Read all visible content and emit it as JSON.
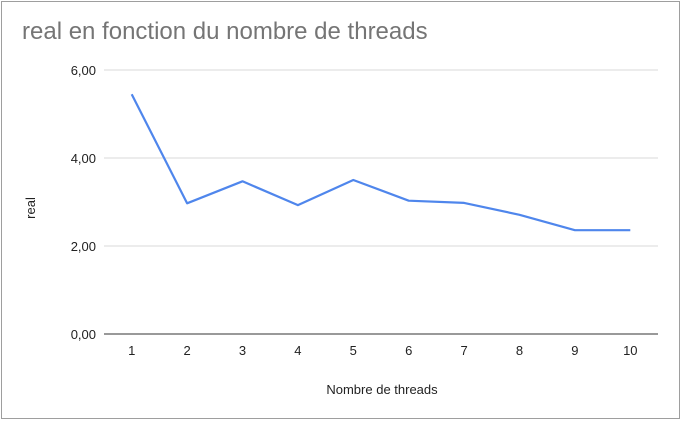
{
  "chart_data": {
    "type": "line",
    "title": "real en fonction du nombre de threads",
    "xlabel": "Nombre de threads",
    "ylabel": "real",
    "categories": [
      "1",
      "2",
      "3",
      "4",
      "5",
      "6",
      "7",
      "8",
      "9",
      "10"
    ],
    "y_ticks": [
      "0,00",
      "2,00",
      "4,00",
      "6,00"
    ],
    "ylim": [
      0,
      6
    ],
    "grid": true,
    "legend": "none",
    "series": [
      {
        "color": "#4f86ec",
        "values": [
          5.45,
          2.97,
          3.47,
          2.93,
          3.5,
          3.03,
          2.98,
          2.71,
          2.36,
          2.36
        ]
      }
    ]
  }
}
